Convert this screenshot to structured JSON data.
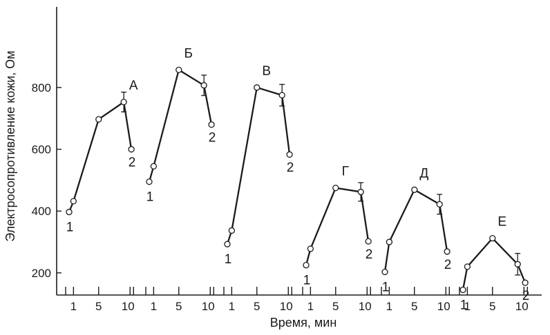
{
  "chart_data": {
    "type": "line",
    "title": "",
    "xlabel": "Время, мин",
    "ylabel": "Электросопротивление кожи, Ом",
    "ylim": [
      0,
      880
    ],
    "y_ticks": [
      200,
      400,
      600,
      800
    ],
    "x_tick_labels": [
      "1",
      "5",
      "10"
    ],
    "grid": false,
    "series": [
      {
        "name": "А",
        "points": [
          {
            "t": 0.3,
            "y": 397,
            "label": "1"
          },
          {
            "t": 1,
            "y": 432
          },
          {
            "t": 5,
            "y": 697
          },
          {
            "t": 9,
            "y": 753,
            "err": 32
          },
          {
            "t": 10.2,
            "y": 600,
            "label": "2"
          }
        ]
      },
      {
        "name": "Б",
        "points": [
          {
            "t": 0.3,
            "y": 495,
            "label": "1"
          },
          {
            "t": 1,
            "y": 545
          },
          {
            "t": 5,
            "y": 857
          },
          {
            "t": 9,
            "y": 807,
            "err": 33
          },
          {
            "t": 10.2,
            "y": 680,
            "label": "2"
          }
        ]
      },
      {
        "name": "В",
        "points": [
          {
            "t": 0.3,
            "y": 293,
            "label": "1"
          },
          {
            "t": 1,
            "y": 337
          },
          {
            "t": 5,
            "y": 800
          },
          {
            "t": 9,
            "y": 775,
            "err": 35
          },
          {
            "t": 10.2,
            "y": 583,
            "label": "2"
          }
        ]
      },
      {
        "name": "Г",
        "points": [
          {
            "t": 0.3,
            "y": 225,
            "label": "1"
          },
          {
            "t": 1,
            "y": 278
          },
          {
            "t": 5,
            "y": 475
          },
          {
            "t": 9,
            "y": 462,
            "err": 30
          },
          {
            "t": 10.2,
            "y": 302,
            "label": "2"
          }
        ]
      },
      {
        "name": "Д",
        "points": [
          {
            "t": 0.3,
            "y": 203,
            "label": "1"
          },
          {
            "t": 1,
            "y": 300
          },
          {
            "t": 5,
            "y": 469
          },
          {
            "t": 9,
            "y": 422,
            "err": 32
          },
          {
            "t": 10.2,
            "y": 269,
            "label": "2"
          }
        ]
      },
      {
        "name": "Е",
        "points": [
          {
            "t": 0.3,
            "y": 145,
            "label": "1"
          },
          {
            "t": 1,
            "y": 220
          },
          {
            "t": 5,
            "y": 312
          },
          {
            "t": 9,
            "y": 228,
            "err": 35
          },
          {
            "t": 10.2,
            "y": 168,
            "label": "2"
          }
        ]
      }
    ]
  }
}
